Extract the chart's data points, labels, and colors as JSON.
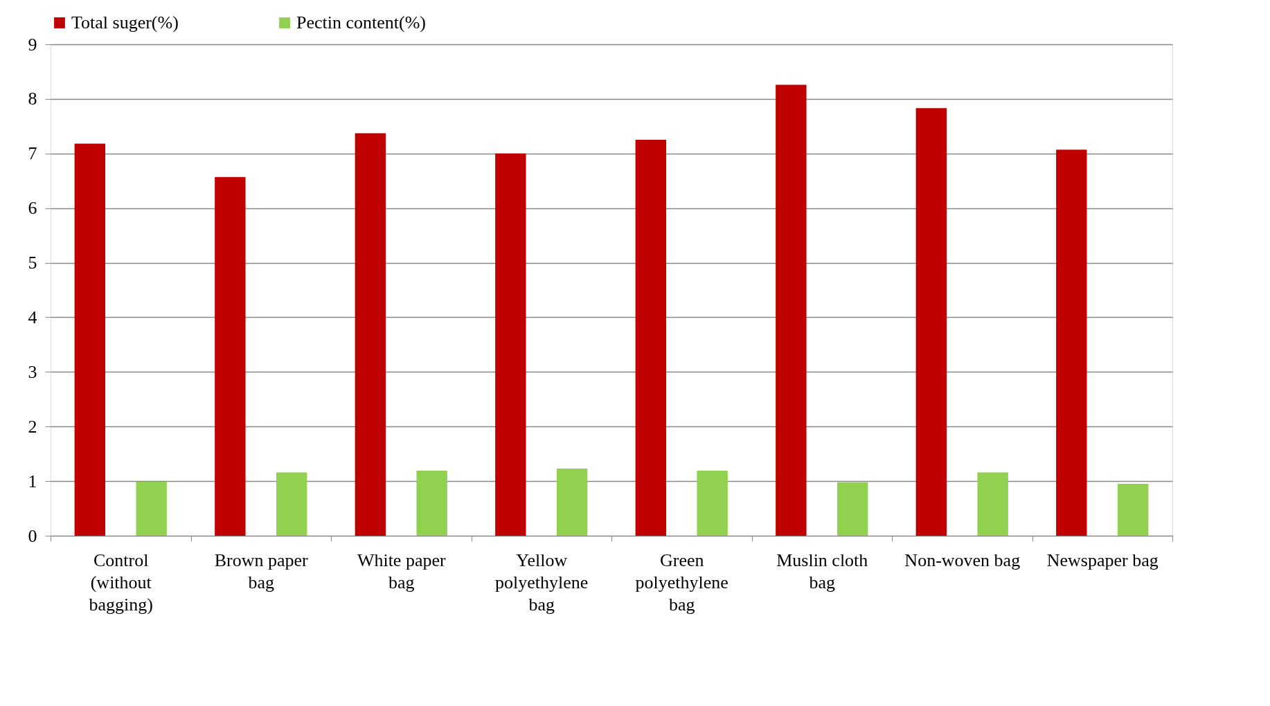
{
  "chart_data": {
    "type": "bar",
    "categories": [
      "Control (without bagging)",
      "Brown paper bag",
      "White paper bag",
      "Yellow polyethylene bag",
      "Green polyethylene bag",
      "Muslin cloth bag",
      "Non-woven bag",
      "Newspaper bag"
    ],
    "series": [
      {
        "name": "Total suger(%)",
        "color": "#c00000",
        "values": [
          7.18,
          6.57,
          7.37,
          7.0,
          7.25,
          8.26,
          7.83,
          7.07
        ]
      },
      {
        "name": "Pectin content(%)",
        "color": "#92d050",
        "values": [
          0.99,
          1.16,
          1.19,
          1.23,
          1.19,
          0.98,
          1.16,
          0.95
        ]
      }
    ],
    "ylim": [
      0,
      9
    ],
    "yticks": [
      0,
      1,
      2,
      3,
      4,
      5,
      6,
      7,
      8,
      9
    ],
    "grid": "y",
    "legend": "top"
  }
}
